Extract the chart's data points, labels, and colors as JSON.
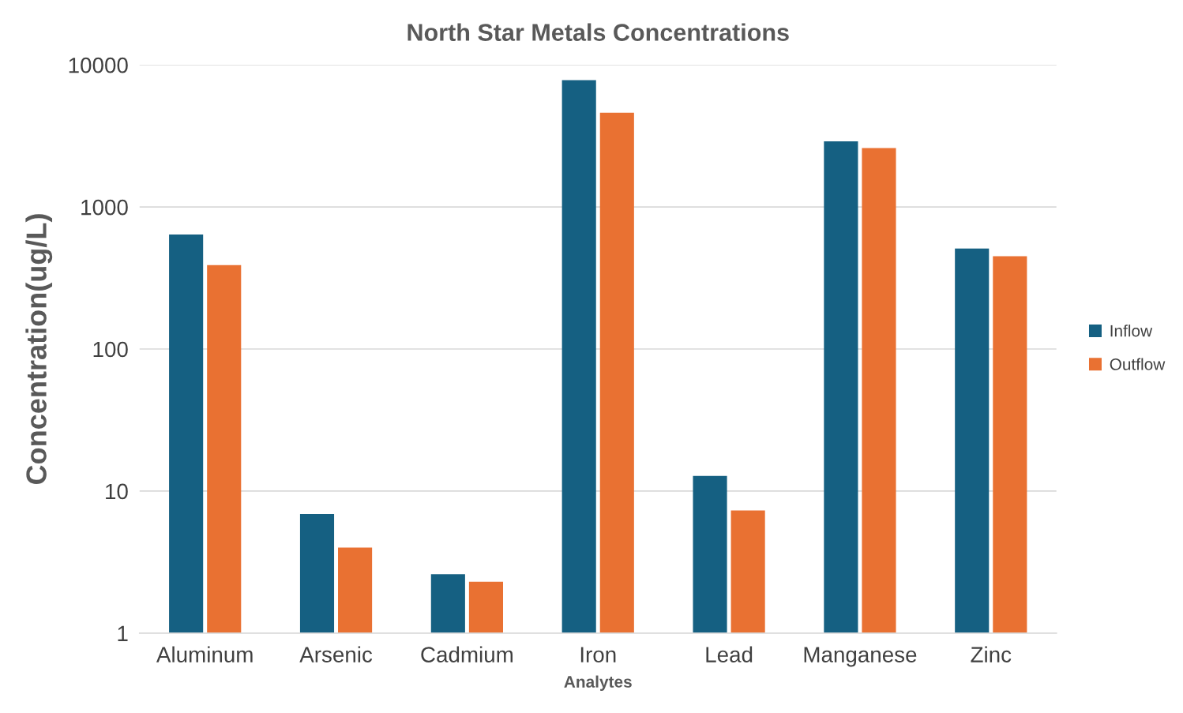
{
  "chart_data": {
    "type": "bar",
    "title": "North Star Metals Concentrations",
    "xlabel": "Analytes",
    "ylabel": "Concentration(ug/L)",
    "categories": [
      "Aluminum",
      "Arsenic",
      "Cadmium",
      "Iron",
      "Lead",
      "Manganese",
      "Zinc"
    ],
    "series": [
      {
        "name": "Inflow",
        "color": "#156082",
        "values": [
          640,
          6.9,
          2.6,
          7800,
          12.8,
          2900,
          510
        ]
      },
      {
        "name": "Outflow",
        "color": "#e97132",
        "values": [
          390,
          4.0,
          2.3,
          4600,
          7.3,
          2600,
          450
        ]
      }
    ],
    "log": true,
    "ylim": [
      1,
      10000
    ],
    "yticks": [
      1,
      10,
      100,
      1000,
      10000
    ],
    "grid": "y",
    "legend": "right"
  }
}
